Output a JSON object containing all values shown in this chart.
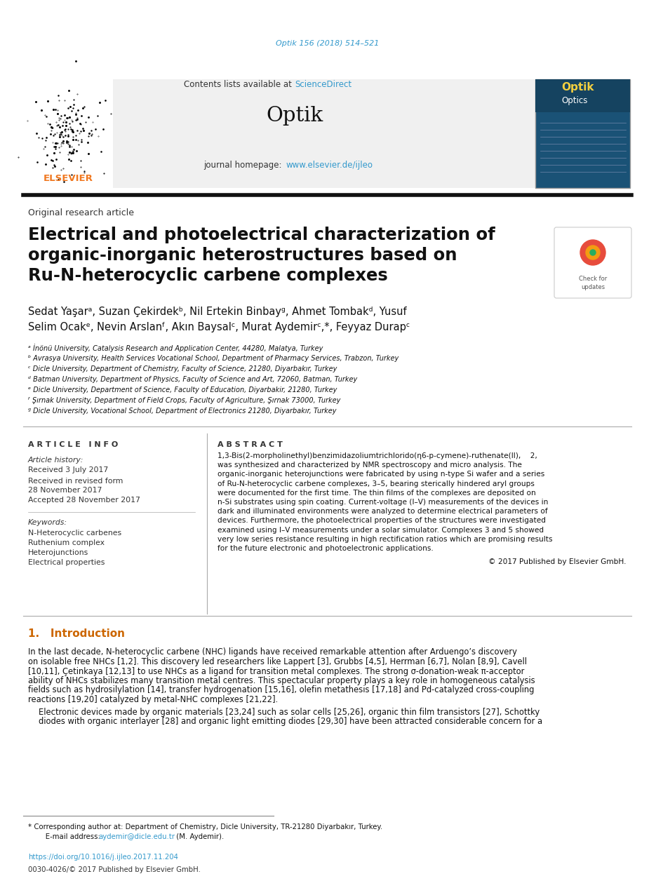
{
  "page_width": 9.35,
  "page_height": 12.66,
  "background_color": "#ffffff",
  "top_link_text": "Optik 156 (2018) 514–521",
  "top_link_color": "#3399cc",
  "header_bg_color": "#f0f0f0",
  "elsevier_color": "#f07820",
  "journal_name": "Optik",
  "journal_homepage_text": "journal homepage: ",
  "journal_homepage_link": "www.elsevier.de/ijleo",
  "journal_link_color": "#3399cc",
  "sciencedirect_text": "Contents lists available at ",
  "sciencedirect_link": "ScienceDirect",
  "article_type": "Original research article",
  "title_line1": "Electrical and photoelectrical characterization of",
  "title_line2": "organic-inorganic heterostructures based on",
  "title_line3": "Ru-N-heterocyclic carbene complexes",
  "authors_line1": "Sedat Yaşarᵃ, Suzan Çekirdekᵇ, Nil Ertekin Binbayᵍ, Ahmet Tombakᵈ, Yusuf",
  "authors_line2": "Selim Ocakᵉ, Nevin Arslanᶠ, Akın Baysalᶜ, Murat Aydemirᶜ,*, Feyyaz Durapᶜ",
  "affiliations": [
    "ᵃ İnönü University, Catalysis Research and Application Center, 44280, Malatya, Turkey",
    "ᵇ Avrasya University, Health Services Vocational School, Department of Pharmacy Services, Trabzon, Turkey",
    "ᶜ Dicle University, Department of Chemistry, Faculty of Science, 21280, Diyarbakır, Turkey",
    "ᵈ Batman University, Department of Physics, Faculty of Science and Art, 72060, Batman, Turkey",
    "ᵉ Dicle University, Department of Science, Faculty of Education, Diyarbakir, 21280, Turkey",
    "ᶠ Şırnak University, Department of Field Crops, Faculty of Agriculture, Şırnak 73000, Turkey",
    "ᵍ Dicle University, Vocational School, Department of Electronics 21280, Diyarbakır, Turkey"
  ],
  "article_info_label": "A R T I C L E   I N F O",
  "abstract_label": "A B S T R A C T",
  "article_history_label": "Article history:",
  "received_text": "Received 3 July 2017",
  "revised_line1": "Received in revised form",
  "revised_line2": "28 November 2017",
  "accepted_text": "Accepted 28 November 2017",
  "keywords_label": "Keywords:",
  "keywords": [
    "N-Heterocyclic carbenes",
    "Ruthenium complex",
    "Heterojunctions",
    "Electrical properties"
  ],
  "abstract_lines": [
    "1,3-Bis(2-morpholinethyl)benzimidazoliumtrichlorido(η6-p-cymene)-ruthenate(II),    2,",
    "was synthesized and characterized by NMR spectroscopy and micro analysis. The",
    "organic-inorganic heterojunctions were fabricated by using n-type Si wafer and a series",
    "of Ru-N-heterocyclic carbene complexes, 3–5, bearing sterically hindered aryl groups",
    "were documented for the first time. The thin films of the complexes are deposited on",
    "n-Si substrates using spin coating. Current-voltage (I–V) measurements of the devices in",
    "dark and illuminated environments were analyzed to determine electrical parameters of",
    "devices. Furthermore, the photoelectrical properties of the structures were investigated",
    "examined using I–V measurements under a solar simulator. Complexes 3 and 5 showed",
    "very low series resistance resulting in high rectification ratios which are promising results",
    "for the future electronic and photoelectronic applications."
  ],
  "copyright_text": "© 2017 Published by Elsevier GmbH.",
  "intro_heading": "1.   Introduction",
  "intro_para1_lines": [
    "In the last decade, N-heterocyclic carbene (NHC) ligands have received remarkable attention after Arduengo’s discovery",
    "on isolable free NHCs [1,2]. This discovery led researchers like Lappert [3], Grubbs [4,5], Herrman [6,7], Nolan [8,9], Cavell",
    "[10,11], Çetinkaya [12,13] to use NHCs as a ligand for transition metal complexes. The strong σ-donation-weak π-acceptor",
    "ability of NHCs stabilizes many transition metal centres. This spectacular property plays a key role in homogeneous catalysis",
    "fields such as hydrosilylation [14], transfer hydrogenation [15,16], olefin metathesis [17,18] and Pd-catalyzed cross-coupling",
    "reactions [19,20] catalyzed by metal-NHC complexes [21,22]."
  ],
  "intro_para2_lines": [
    "Electronic devices made by organic materials [23,24] such as solar cells [25,26], organic thin film transistors [27], Schottky",
    "diodes with organic interlayer [28] and organic light emitting diodes [29,30] have been attracted considerable concern for a"
  ],
  "footnote_line1": "* Corresponding author at: Department of Chemistry, Dicle University, TR-21280 Diyarbakır, Turkey.",
  "footnote_line2_pre": "   E-mail address: ",
  "footnote_email": "aydemir@dicle.edu.tr",
  "footnote_line2_post": " (M. Aydemir).",
  "doi_text": "https://doi.org/10.1016/j.ijleo.2017.11.204",
  "issn_text": "0030-4026/© 2017 Published by Elsevier GmbH.",
  "doi_color": "#3399cc",
  "intro_heading_color": "#cc6600"
}
